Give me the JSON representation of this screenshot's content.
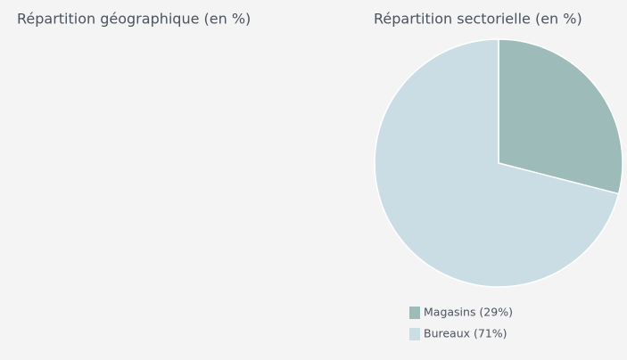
{
  "chart_data": [
    {
      "title": "Répartition géographique (en %)"
    },
    {
      "type": "pie",
      "title": "Répartition sectorielle (en %)",
      "categories": [
        "Magasins (29%)",
        "Bureaux (71%)"
      ],
      "values": [
        29,
        71
      ],
      "colors": [
        "#9dbbb9",
        "#cadde4"
      ]
    }
  ]
}
